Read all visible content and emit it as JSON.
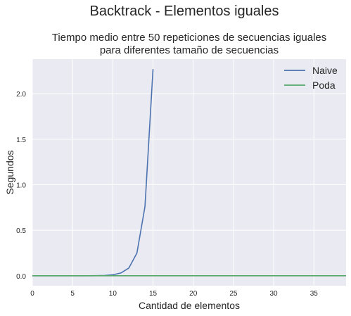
{
  "chart_data": {
    "type": "line",
    "suptitle": "Backtrack - Elementos iguales",
    "title_lines": [
      "Tiempo medio entre 50 repeticiones de secuencias iguales",
      "para diferentes tamaño de secuencias"
    ],
    "xlabel": "Cantidad de elementos",
    "ylabel": "Segundos",
    "xlim": [
      0,
      39
    ],
    "ylim": [
      -0.11,
      2.38
    ],
    "xticks": [
      0,
      5,
      10,
      15,
      20,
      25,
      30,
      35
    ],
    "yticks": [
      0.0,
      0.5,
      1.0,
      1.5,
      2.0
    ],
    "xtick_labels": [
      "0",
      "5",
      "10",
      "15",
      "20",
      "25",
      "30",
      "35"
    ],
    "ytick_labels": [
      "0.0",
      "0.5",
      "1.0",
      "1.5",
      "2.0"
    ],
    "grid": true,
    "legend_position": "top-right",
    "series": [
      {
        "name": "Naive",
        "color": "#4c72b0",
        "x": [
          0,
          1,
          2,
          3,
          4,
          5,
          6,
          7,
          8,
          9,
          10,
          11,
          12,
          13,
          14,
          15
        ],
        "y": [
          0,
          0,
          0,
          0,
          0,
          0,
          0,
          0,
          0.001,
          0.003,
          0.01,
          0.03,
          0.085,
          0.25,
          0.76,
          2.27
        ]
      },
      {
        "name": "Poda",
        "color": "#55a868",
        "x": [
          0,
          5,
          10,
          15,
          20,
          25,
          30,
          35,
          39
        ],
        "y": [
          0,
          0,
          0,
          0,
          0,
          0,
          0,
          0,
          0
        ]
      }
    ]
  }
}
